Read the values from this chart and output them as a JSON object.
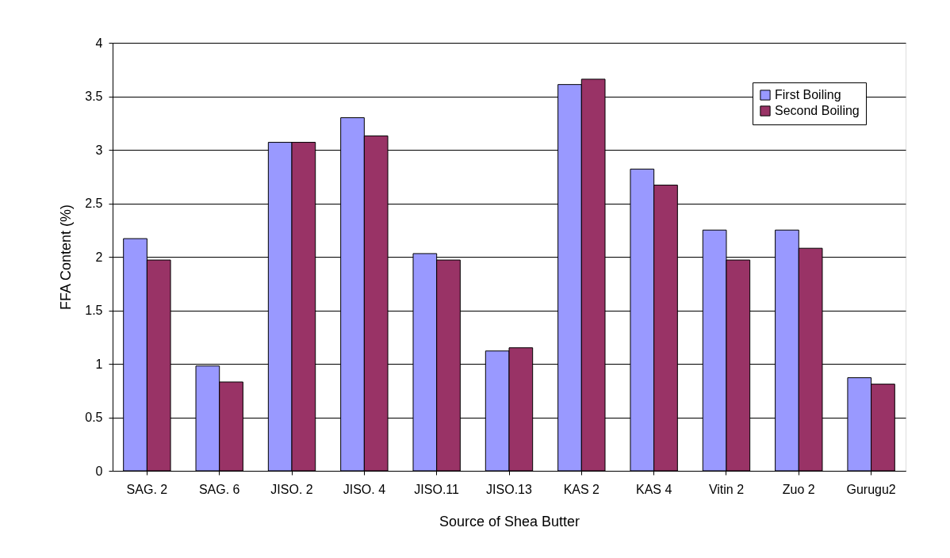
{
  "chart_data": {
    "type": "bar",
    "xlabel": "Source of Shea Butter",
    "ylabel": "FFA Content (%)",
    "categories": [
      "SAG. 2",
      "SAG. 6",
      "JISO. 2",
      "JISO. 4",
      "JISO.11",
      "JISO.13",
      "KAS 2",
      "KAS 4",
      "Vitin 2",
      "Zuo 2",
      "Gurugu2"
    ],
    "series": [
      {
        "name": "First Boiling",
        "color": "#9999ff",
        "values": [
          2.17,
          0.98,
          3.07,
          3.3,
          2.03,
          1.12,
          3.61,
          2.82,
          2.25,
          2.25,
          0.87
        ]
      },
      {
        "name": "Second Boiling",
        "color": "#993366",
        "values": [
          1.97,
          0.83,
          3.07,
          3.13,
          1.97,
          1.15,
          3.66,
          2.67,
          1.97,
          2.08,
          0.81
        ]
      }
    ],
    "ylim": [
      0,
      4
    ],
    "yticks": [
      0,
      0.5,
      1,
      1.5,
      2,
      2.5,
      3,
      3.5,
      4
    ],
    "grid": "y",
    "legend": "top right"
  }
}
